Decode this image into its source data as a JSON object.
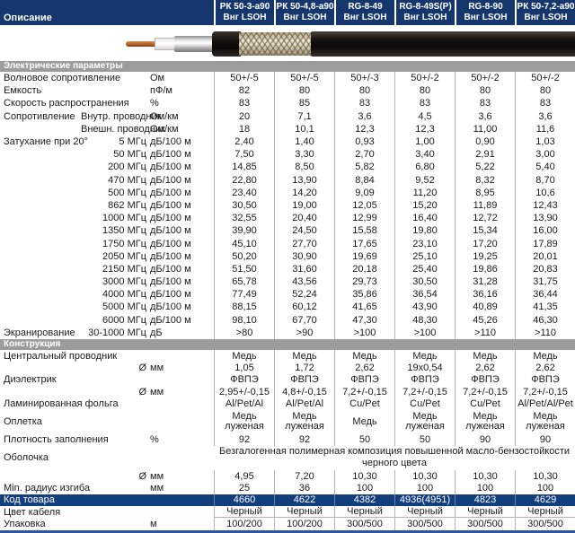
{
  "description_label": "Описание",
  "colors": {
    "header_bg": "#15376e",
    "highlight_bg": "#123e7e",
    "section_bg": "#9c9c9c",
    "separator": "#b5b5b5",
    "bottom_border": "#2b57a5"
  },
  "products": [
    {
      "name": "РК 50-3-а90",
      "grade": "Внг LSOH"
    },
    {
      "name": "РК 50-4,8-а90",
      "grade": "Внг LSOH"
    },
    {
      "name": "RG-8-49",
      "grade": "Внг LSOH"
    },
    {
      "name": "RG-8-49S(P)",
      "grade": "Внг LSOH"
    },
    {
      "name": "RG-8-90",
      "grade": "Внг LSOH"
    },
    {
      "name": "РК 50-7,2-а90",
      "grade": "Внг LSOH"
    }
  ],
  "cable_image": {
    "parts": [
      "center-conductor",
      "dielectric",
      "foil-shield",
      "inner-jacket-edge",
      "braid-shield",
      "outer-jacket"
    ]
  },
  "sections": {
    "electrical": {
      "title": "Электрические параметры",
      "rows": [
        {
          "label": "Волновое сопротивление",
          "sub": "",
          "unit": "Ом",
          "values": [
            "50+/-5",
            "50+/-5",
            "50+/-3",
            "50+/-2",
            "50+/-2",
            "50+/-2"
          ]
        },
        {
          "label": "Емкость",
          "sub": "",
          "unit": "пФ/м",
          "values": [
            "82",
            "80",
            "80",
            "80",
            "80",
            "80"
          ]
        },
        {
          "label": "Скорость распространения",
          "sub": "",
          "unit": "%",
          "values": [
            "83",
            "85",
            "83",
            "83",
            "83",
            "83"
          ]
        },
        {
          "label": "Сопротивление",
          "sub": "Внутр. проводник",
          "unit": "Ом/км",
          "values": [
            "20",
            "7,1",
            "3,6",
            "4,5",
            "3,6",
            "3,6"
          ]
        },
        {
          "label": "",
          "sub": "Внешн. проводник",
          "unit": "Ом/км",
          "values": [
            "18",
            "10,1",
            "12,3",
            "12,3",
            "11,00",
            "11,6"
          ]
        },
        {
          "label": "Затухание при 20°",
          "sub": "5 МГц",
          "unit": "дБ/100 м",
          "values": [
            "2,40",
            "1,40",
            "0,93",
            "1,00",
            "0,90",
            "1,03"
          ]
        },
        {
          "label": "",
          "sub": "50 МГц",
          "unit": "дБ/100 м",
          "values": [
            "7,50",
            "3,30",
            "2,70",
            "3,40",
            "2,91",
            "3,00"
          ]
        },
        {
          "label": "",
          "sub": "200 МГц",
          "unit": "дБ/100 м",
          "values": [
            "14,85",
            "8,50",
            "5,82",
            "6,80",
            "5,22",
            "5,40"
          ]
        },
        {
          "label": "",
          "sub": "470 МГц",
          "unit": "дБ/100 м",
          "values": [
            "22,80",
            "13,90",
            "8,84",
            "9,52",
            "8,32",
            "8,70"
          ]
        },
        {
          "label": "",
          "sub": "500 МГц",
          "unit": "дБ/100 м",
          "values": [
            "23,40",
            "14,20",
            "9,09",
            "11,20",
            "8,95",
            "10,6"
          ]
        },
        {
          "label": "",
          "sub": "862 МГц",
          "unit": "дБ/100 м",
          "values": [
            "30,50",
            "19,00",
            "12,05",
            "15,20",
            "11,89",
            "12,43"
          ]
        },
        {
          "label": "",
          "sub": "1000 МГц",
          "unit": "дБ/100 м",
          "values": [
            "32,55",
            "20,40",
            "12,99",
            "16,40",
            "12,72",
            "13,90"
          ]
        },
        {
          "label": "",
          "sub": "1350 МГц",
          "unit": "дБ/100 м",
          "values": [
            "39,90",
            "24,50",
            "15,58",
            "19,80",
            "15,34",
            "16,00"
          ]
        },
        {
          "label": "",
          "sub": "1750 МГц",
          "unit": "дБ/100 м",
          "values": [
            "45,10",
            "27,70",
            "17,65",
            "23,10",
            "17,20",
            "17,89"
          ]
        },
        {
          "label": "",
          "sub": "2050 МГц",
          "unit": "дБ/100 м",
          "values": [
            "50,20",
            "30,90",
            "19,69",
            "25,10",
            "19,25",
            "20,01"
          ]
        },
        {
          "label": "",
          "sub": "2150 МГц",
          "unit": "дБ/100 м",
          "values": [
            "51,50",
            "31,60",
            "20,18",
            "25,40",
            "19,86",
            "20,83"
          ]
        },
        {
          "label": "",
          "sub": "3000 МГц",
          "unit": "дБ/100 м",
          "values": [
            "65,78",
            "43,56",
            "29,73",
            "30,50",
            "31,28",
            "31,75"
          ]
        },
        {
          "label": "",
          "sub": "4000 МГц",
          "unit": "дБ/100 м",
          "values": [
            "77,49",
            "52,24",
            "35,86",
            "36,54",
            "36,16",
            "36,44"
          ]
        },
        {
          "label": "",
          "sub": "5000 МГц",
          "unit": "дБ/100 м",
          "values": [
            "88,15",
            "60,12",
            "41,65",
            "43,90",
            "40,89",
            "41,35"
          ]
        },
        {
          "label": "",
          "sub": "6000 МГц",
          "unit": "дБ/100 м",
          "values": [
            "98,10",
            "67,70",
            "47,30",
            "48,30",
            "45,26",
            "46,30"
          ]
        },
        {
          "label": "Экранирование",
          "sub": "30-1000 МГц",
          "unit": "дБ",
          "values": [
            ">80",
            ">90",
            ">100",
            ">100",
            ">110",
            ">110"
          ]
        }
      ]
    },
    "construction": {
      "title": "Конструкция",
      "rows": [
        {
          "label": "Центральный проводник",
          "sub": "",
          "unit": "",
          "values": [
            "Медь",
            "Медь",
            "Медь",
            "Медь",
            "Медь",
            "Медь"
          ]
        },
        {
          "label": "",
          "sub": "Ø",
          "unit": "мм",
          "values": [
            "1,05",
            "1,72",
            "2,62",
            "19x0,54",
            "2,62",
            "2,62"
          ]
        },
        {
          "label": "Диэлектрик",
          "sub": "",
          "unit": "",
          "values": [
            "ФВПЭ",
            "ФВПЭ",
            "ФВПЭ",
            "ФВПЭ",
            "ФВПЭ",
            "ФВПЭ"
          ]
        },
        {
          "label": "",
          "sub": "Ø",
          "unit": "мм",
          "values": [
            "2,95+/-0,15",
            "4,8+/-0,15",
            "7,2+/-0,15",
            "7,2+/-0,15",
            "7,2+/-0,15",
            "7,2+/-0,15"
          ]
        },
        {
          "label": "Ламинированная фольга",
          "sub": "",
          "unit": "",
          "values": [
            "Al/Pet/Al",
            "Al/Pet/Al",
            "Cu/Pet",
            "Cu/Pet",
            "Cu/Pet",
            "Al/Pet/Al/Pet"
          ]
        },
        {
          "label": "Оплетка",
          "sub": "",
          "unit": "",
          "type": "tall",
          "values": [
            "Медь\nлуженая",
            "Медь\nлуженая",
            "Медь",
            "Медь\nлуженая",
            "Медь\nлуженая",
            "Медь\nлуженая"
          ]
        },
        {
          "label": "Плотность заполнения",
          "sub": "",
          "unit": "%",
          "values": [
            "92",
            "92",
            "50",
            "50",
            "90",
            "90"
          ]
        },
        {
          "label": "Оболочка",
          "sub": "",
          "unit": "",
          "type": "span",
          "span_text": "Безгалогенная полимерная композиция повышенной масло-бензостойкости\nчерного цвета"
        },
        {
          "label": "",
          "sub": "Ø",
          "unit": "мм",
          "values": [
            "4,95",
            "7,20",
            "10,30",
            "10,30",
            "10,30",
            "10,30"
          ]
        },
        {
          "label": "Min. радиус изгиба",
          "sub": "",
          "unit": "мм",
          "values": [
            "25",
            "36",
            "100",
            "100",
            "100",
            "100"
          ]
        },
        {
          "label": "Код товара",
          "sub": "",
          "unit": "",
          "type": "highlight",
          "values": [
            "4660",
            "4622",
            "4382",
            "4936(4951)",
            "4823",
            "4629"
          ]
        },
        {
          "label": "Цвет кабеля",
          "sub": "",
          "unit": "",
          "type": "underline",
          "values": [
            "Черный",
            "Черный",
            "Черный",
            "Черный",
            "Черный",
            "Черный"
          ]
        },
        {
          "label": "Упаковка",
          "sub": "",
          "unit": "м",
          "values": [
            "100/200",
            "100/200",
            "300/500",
            "300/500",
            "300/500",
            "300/500"
          ]
        }
      ]
    }
  }
}
